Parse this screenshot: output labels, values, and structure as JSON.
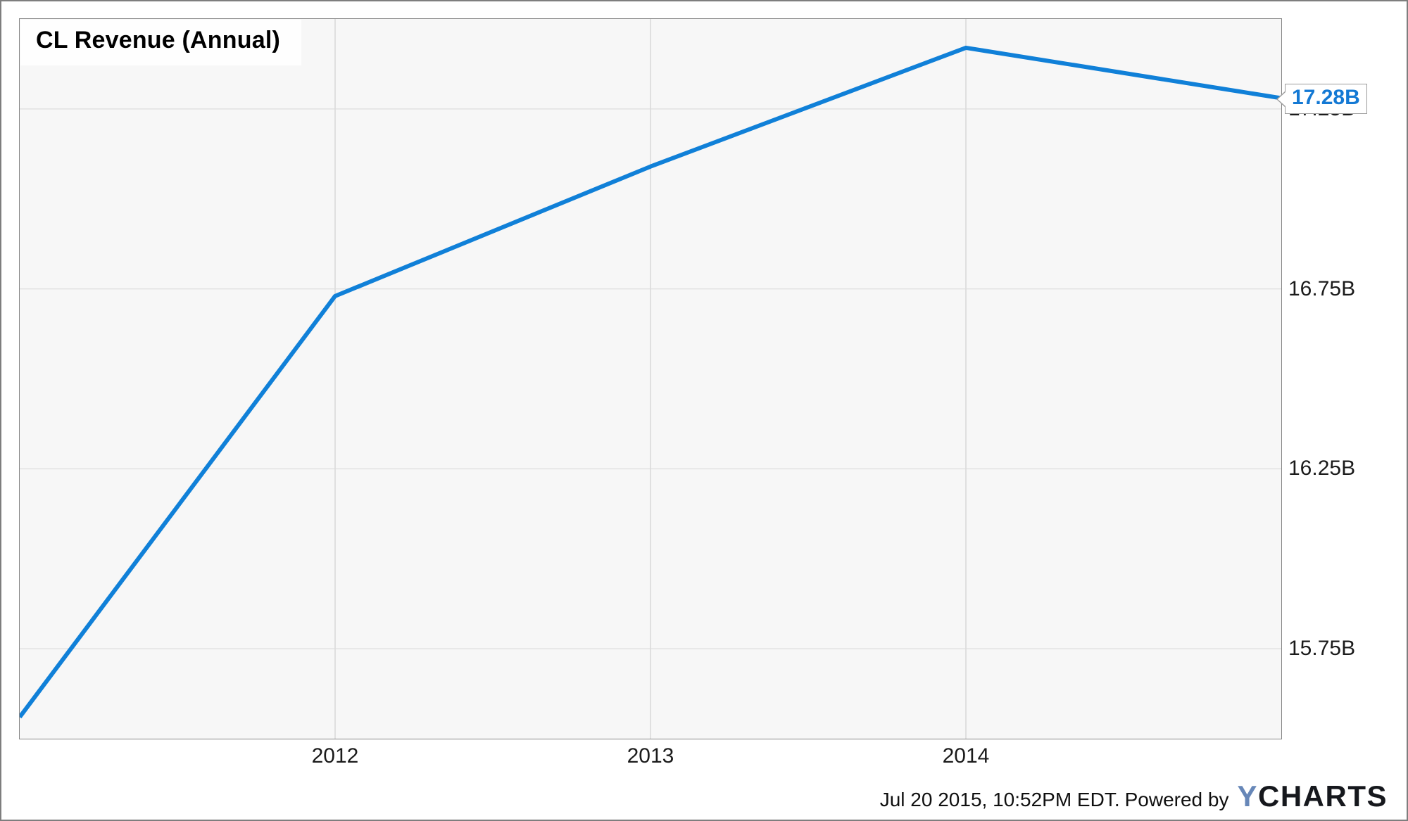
{
  "title": "CL Revenue (Annual)",
  "callout": {
    "label": "17.28B"
  },
  "footer": {
    "timestamp": "Jul 20 2015, 10:52PM EDT.",
    "powered_by": "Powered by",
    "logo": {
      "y": "Y",
      "charts": "CHARTS"
    }
  },
  "colors": {
    "line_blue": "#1080d8",
    "callout_text_blue": "#1479d4",
    "logo_y_blue": "#6787b8",
    "logo_charts_black": "#16181d",
    "plot_background": "#f7f7f7",
    "horizontal_grid": "#e2e2e2",
    "vertical_grid": "#d9d9d9",
    "border_gray": "#858585"
  },
  "chart_data": {
    "type": "line",
    "title": "CL Revenue (Annual)",
    "xlabel": "",
    "ylabel": "",
    "unit": "B",
    "xlim": [
      2011,
      2015
    ],
    "ylim_billions": [
      15.5,
      17.5
    ],
    "grid": true,
    "legend": false,
    "series": [
      {
        "name": "CL Revenue (Annual)",
        "x": [
          2011,
          2012,
          2013,
          2014,
          2015
        ],
        "values_billions": [
          15.56,
          16.73,
          17.09,
          17.42,
          17.28
        ]
      }
    ],
    "x_ticks": [
      {
        "value": 2012,
        "label": "2012"
      },
      {
        "value": 2013,
        "label": "2013"
      },
      {
        "value": 2014,
        "label": "2014"
      }
    ],
    "y_ticks": [
      {
        "value": 17.25,
        "label": "17.25B"
      },
      {
        "value": 16.75,
        "label": "16.75B"
      },
      {
        "value": 16.25,
        "label": "16.25B"
      },
      {
        "value": 15.75,
        "label": "15.75B"
      }
    ],
    "last_point_label": "17.28B"
  }
}
